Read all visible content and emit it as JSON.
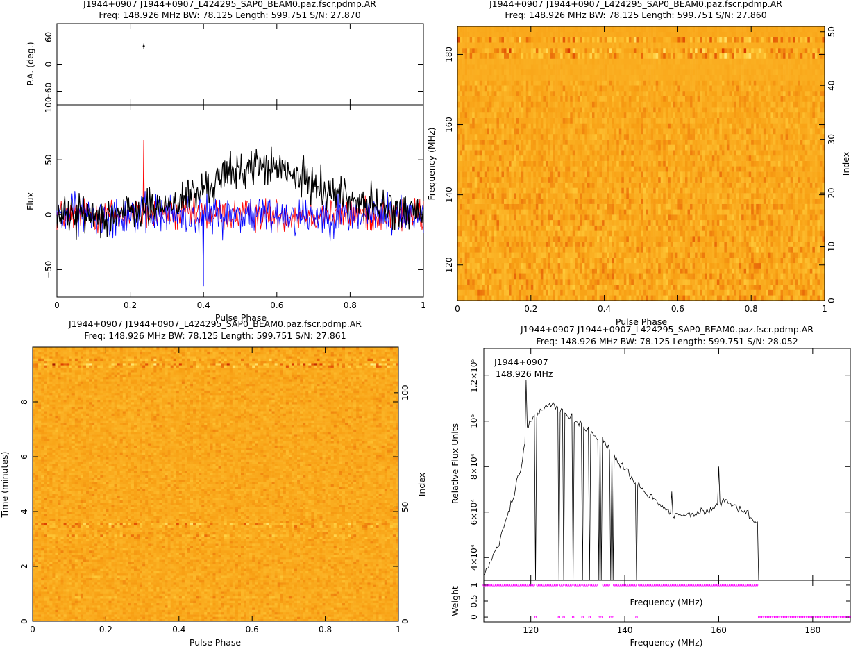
{
  "chart_data": [
    {
      "type": "line",
      "id": "profile",
      "title": "J1944+0907 J1944+0907_L424295_SAP0_BEAM0.paz.fscr.pdmp.AR",
      "subtitle": "Freq: 148.926 MHz BW: 78.125 Length: 599.751 S/N: 27.870",
      "xlabel": "Pulse Phase",
      "xlim": [
        0,
        1
      ],
      "x_ticks": [
        "0",
        "0.2",
        "0.4",
        "0.6",
        "0.8",
        "1"
      ],
      "pa_panel": {
        "ylabel": "P.A. (deg.)",
        "ylim": [
          -90,
          90
        ],
        "y_ticks": [
          "60",
          "0",
          "−60"
        ],
        "points": [
          {
            "x": 0.237,
            "y": 40,
            "err": 6
          }
        ]
      },
      "flux_panel": {
        "ylabel": "Flux",
        "ylim": [
          -75,
          100
        ],
        "y_ticks": [
          "100",
          "50",
          "0",
          "−50"
        ],
        "series": [
          {
            "color": "#000000",
            "envelope": [
              [
                0,
                0
              ],
              [
                0.1,
                0
              ],
              [
                0.2,
                2
              ],
              [
                0.3,
                8
              ],
              [
                0.4,
                22
              ],
              [
                0.45,
                35
              ],
              [
                0.5,
                40
              ],
              [
                0.55,
                45
              ],
              [
                0.6,
                42
              ],
              [
                0.65,
                35
              ],
              [
                0.7,
                28
              ],
              [
                0.8,
                15
              ],
              [
                0.9,
                5
              ],
              [
                1.0,
                0
              ]
            ],
            "noise": 15
          },
          {
            "color": "#ff0000",
            "envelope": [
              [
                0,
                0
              ],
              [
                1.0,
                0
              ]
            ],
            "noise": 13,
            "spike": [
              0.237,
              68
            ]
          },
          {
            "color": "#0000ff",
            "envelope": [
              [
                0,
                0
              ],
              [
                1.0,
                0
              ]
            ],
            "noise": 16,
            "spike": [
              0.4,
              -65
            ]
          }
        ]
      }
    },
    {
      "type": "heatmap",
      "id": "freq-phase",
      "title": "J1944+0907 J1944+0907_L424295_SAP0_BEAM0.paz.fscr.pdmp.AR",
      "subtitle": "Freq: 148.926 MHz BW: 78.125 Length: 599.751 S/N: 27.860",
      "xlabel": "Pulse Phase",
      "ylabel": "Frequency (MHz)",
      "ylabel_right": "Index",
      "xlim": [
        0,
        1
      ],
      "ylim": [
        109.863,
        188.0
      ],
      "index_lim": [
        0,
        51
      ],
      "x_ticks": [
        "0",
        "0.2",
        "0.4",
        "0.6",
        "0.8",
        "1"
      ],
      "y_ticks": [
        "120",
        "140",
        "160",
        "180"
      ],
      "index_ticks": [
        "0",
        "10",
        "20",
        "30",
        "40",
        "50"
      ]
    },
    {
      "type": "heatmap",
      "id": "time-phase",
      "title": "J1944+0907 J1944+0907_L424295_SAP0_BEAM0.paz.fscr.pdmp.AR",
      "subtitle": "Freq: 148.926 MHz BW: 78.125 Length: 599.751 S/N: 27.861",
      "xlabel": "Pulse Phase",
      "ylabel": "Time (minutes)",
      "ylabel_right": "Index",
      "xlim": [
        0,
        1
      ],
      "ylim": [
        0,
        10
      ],
      "index_lim": [
        0,
        120
      ],
      "x_ticks": [
        "0",
        "0.2",
        "0.4",
        "0.6",
        "0.8",
        "1"
      ],
      "y_ticks": [
        "0",
        "2",
        "4",
        "6",
        "8"
      ],
      "index_ticks": [
        "0",
        "50",
        "100"
      ]
    },
    {
      "type": "line",
      "id": "bandpass",
      "title": "J1944+0907 J1944+0907_L424295_SAP0_BEAM0.paz.fscr.pdmp.AR",
      "subtitle": "Freq: 148.926 MHz BW: 78.125 Length: 599.751 S/N: 28.052",
      "legend_lines": [
        "J1944+0907",
        "148.926 MHz"
      ],
      "xlabel": "Frequency (MHz)",
      "ylabel": "Relative Flux Units",
      "xlim": [
        110,
        188
      ],
      "ylim": [
        30000,
        132000
      ],
      "x_ticks": [
        "120",
        "140",
        "160",
        "180"
      ],
      "y_ticks": [
        "4×10⁴",
        "6×10⁴",
        "8×10⁴",
        "10⁵",
        "1.2×10⁵"
      ],
      "y_tick_values": [
        40000,
        60000,
        80000,
        100000,
        120000
      ],
      "curve": [
        [
          110,
          32000
        ],
        [
          112,
          40000
        ],
        [
          114,
          52000
        ],
        [
          116,
          66000
        ],
        [
          118,
          80000
        ],
        [
          119,
          95000
        ],
        [
          120,
          100000
        ],
        [
          122,
          105000
        ],
        [
          124,
          108000
        ],
        [
          126,
          106000
        ],
        [
          128,
          102000
        ],
        [
          130,
          99000
        ],
        [
          132,
          96000
        ],
        [
          134,
          93000
        ],
        [
          136,
          90000
        ],
        [
          138,
          84000
        ],
        [
          140,
          79000
        ],
        [
          142,
          74000
        ],
        [
          144,
          69000
        ],
        [
          146,
          66000
        ],
        [
          148,
          62000
        ],
        [
          150,
          60000
        ],
        [
          152,
          59000
        ],
        [
          154,
          59000
        ],
        [
          156,
          59500
        ],
        [
          158,
          60500
        ],
        [
          160,
          63000
        ],
        [
          162,
          65000
        ],
        [
          164,
          62000
        ],
        [
          166,
          59000
        ],
        [
          168,
          56000
        ]
      ],
      "drops": [
        121,
        126,
        127,
        129,
        131,
        132.5,
        134.5,
        135,
        137,
        137.5,
        142.5,
        168.6
      ],
      "spikes": [
        [
          119,
          118000
        ],
        [
          160,
          80000
        ],
        [
          150,
          69000
        ]
      ],
      "weight_panel": {
        "ylabel": "Weight",
        "xlabel": "Frequency (MHz)",
        "ylim": [
          -0.15,
          1.15
        ],
        "y_ticks": [
          "0",
          "0.5",
          "1"
        ],
        "marker_color": "#ff00ff",
        "ones_range": [
          110,
          168.4
        ],
        "zeros_range": [
          168.6,
          188
        ],
        "zero_points": [
          121,
          126,
          127,
          129,
          131,
          132.5,
          134.5,
          135,
          137,
          137.5,
          142.5
        ]
      }
    }
  ]
}
